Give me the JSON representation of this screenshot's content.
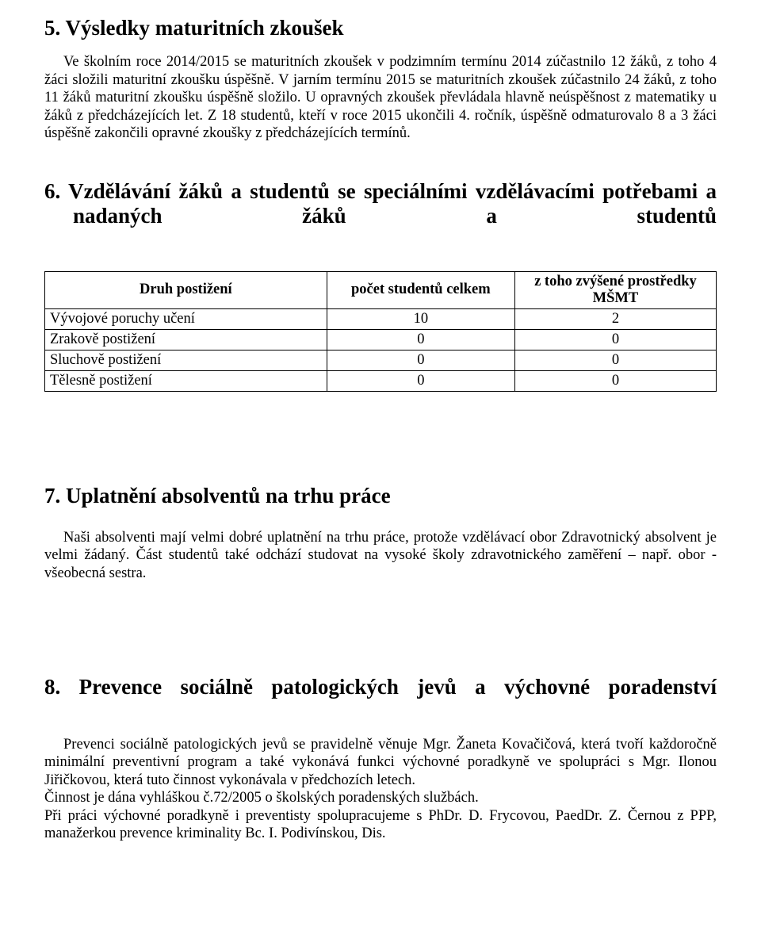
{
  "section5": {
    "heading": "5. Výsledky maturitních zkoušek",
    "para": "Ve školním roce 2014/2015 se maturitních zkoušek v podzimním termínu 2014 zúčastnilo 12 žáků, z toho 4 žáci složili maturitní zkoušku úspěšně. V jarním termínu 2015 se maturitních zkoušek zúčastnilo 24 žáků, z toho 11 žáků maturitní zkoušku úspěšně složilo. U opravných zkoušek převládala hlavně neúspěšnost z matematiky u žáků z předcházejících let. Z 18 studentů, kteří v roce 2015 ukončili 4. ročník, úspěšně odmaturovalo 8 a 3 žáci úspěšně zakončili opravné zkoušky z předcházejících termínů."
  },
  "section6": {
    "heading": "6. Vzdělávání žáků a studentů se speciálními vzdělávacími potřebami a nadaných žáků a studentů",
    "table": {
      "columns": [
        "Druh postižení",
        "počet studentů celkem",
        "z toho zvýšené prostředky MŠMT"
      ],
      "rows": [
        [
          "Vývojové poruchy učení",
          "10",
          "2"
        ],
        [
          "Zrakově postižení",
          "0",
          "0"
        ],
        [
          "Sluchově postižení",
          "0",
          "0"
        ],
        [
          "Tělesně postižení",
          "0",
          "0"
        ]
      ]
    }
  },
  "section7": {
    "heading": "7. Uplatnění absolventů na trhu práce",
    "para": "Naši absolventi mají velmi dobré uplatnění na trhu práce, protože vzdělávací obor Zdravotnický absolvent je velmi žádaný. Část studentů také odchází studovat na vysoké školy zdravotnického zaměření – např. obor - všeobecná sestra."
  },
  "section8": {
    "heading": "8. Prevence sociálně patologických jevů a výchovné poradenství",
    "para1": "Prevenci sociálně patologických jevů se pravidelně věnuje Mgr. Žaneta Kovačičová, která tvoří každoročně minimální preventivní program a také vykonává funkci výchovné poradkyně ve spolupráci s Mgr. Ilonou Jiřičkovou, která tuto činnost vykonávala v předchozích letech.",
    "para2": "Činnost je dána vyhláškou č.72/2005 o školských poradenských službách.",
    "para3": "Při práci výchovné poradkyně i preventisty spolupracujeme s PhDr. D. Frycovou, PaedDr. Z. Černou z PPP, manažerkou prevence kriminality Bc. I. Podivínskou, Dis."
  }
}
